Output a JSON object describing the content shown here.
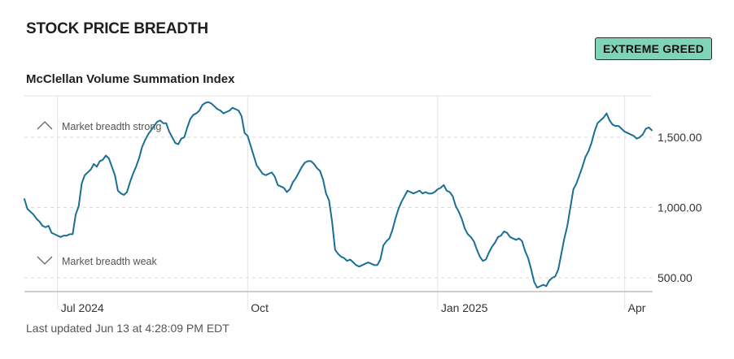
{
  "header": {
    "title": "STOCK PRICE BREADTH",
    "badge": "EXTREME GREED",
    "footer": "Last updated Jun 13 at 4:28:09 PM EDT"
  },
  "colors": {
    "line": "#1a6e94",
    "badge_bg": "#7fd4b8",
    "grid": "#d9d9d9"
  },
  "chart_data": {
    "type": "line",
    "title": "McClellan Volume Summation Index",
    "x_unit": "trading-day index",
    "x_ticks": [
      {
        "x": 11,
        "label": "Jul 2024"
      },
      {
        "x": 74,
        "label": "Oct"
      },
      {
        "x": 137,
        "label": "Jan 2025"
      },
      {
        "x": 199,
        "label": "Apr"
      }
    ],
    "y_ticks": [
      500,
      1000,
      1500
    ],
    "y_tick_labels": [
      "500.00",
      "1,000.00",
      "1,500.00"
    ],
    "ylim": [
      400,
      1700
    ],
    "annotations": {
      "strong": "Market breadth strong",
      "weak": "Market breadth weak"
    },
    "grid": true,
    "values": [
      1060,
      990,
      970,
      950,
      920,
      900,
      870,
      860,
      870,
      820,
      810,
      800,
      790,
      800,
      800,
      810,
      810,
      950,
      1010,
      1170,
      1230,
      1250,
      1270,
      1310,
      1290,
      1330,
      1340,
      1370,
      1350,
      1290,
      1230,
      1120,
      1100,
      1090,
      1110,
      1180,
      1240,
      1290,
      1350,
      1430,
      1480,
      1520,
      1550,
      1580,
      1610,
      1620,
      1600,
      1600,
      1540,
      1500,
      1460,
      1450,
      1490,
      1500,
      1570,
      1630,
      1660,
      1670,
      1690,
      1730,
      1745,
      1750,
      1740,
      1720,
      1700,
      1690,
      1670,
      1680,
      1690,
      1710,
      1700,
      1690,
      1650,
      1530,
      1510,
      1440,
      1370,
      1300,
      1270,
      1240,
      1230,
      1240,
      1250,
      1220,
      1160,
      1150,
      1140,
      1110,
      1130,
      1180,
      1210,
      1250,
      1290,
      1320,
      1330,
      1330,
      1310,
      1280,
      1260,
      1200,
      1100,
      1050,
      900,
      700,
      670,
      650,
      640,
      620,
      630,
      610,
      590,
      580,
      590,
      600,
      610,
      600,
      590,
      590,
      630,
      730,
      760,
      780,
      840,
      920,
      990,
      1040,
      1080,
      1120,
      1110,
      1100,
      1110,
      1120,
      1100,
      1110,
      1100,
      1100,
      1110,
      1130,
      1140,
      1160,
      1120,
      1110,
      1080,
      1010,
      970,
      920,
      850,
      810,
      790,
      760,
      700,
      650,
      620,
      630,
      680,
      720,
      750,
      790,
      800,
      830,
      820,
      790,
      780,
      770,
      780,
      760,
      690,
      640,
      560,
      470,
      430,
      440,
      450,
      440,
      480,
      500,
      510,
      560,
      670,
      780,
      870,
      1000,
      1130,
      1170,
      1230,
      1290,
      1360,
      1400,
      1460,
      1540,
      1600,
      1620,
      1640,
      1670,
      1620,
      1590,
      1580,
      1580,
      1560,
      1540,
      1530,
      1520,
      1510,
      1490,
      1500,
      1520,
      1560,
      1570,
      1550
    ]
  }
}
